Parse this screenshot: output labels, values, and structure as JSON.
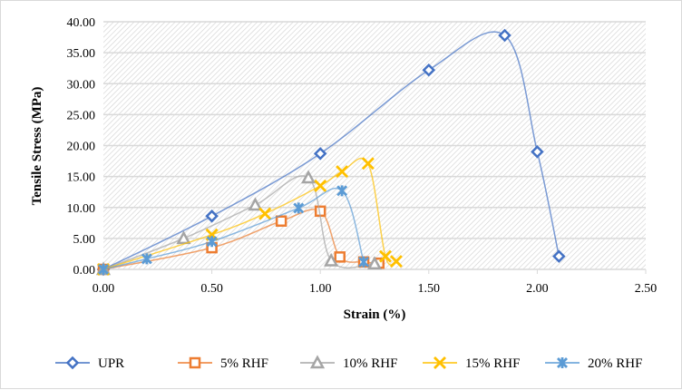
{
  "chart_data": {
    "type": "scatter",
    "title": "",
    "xlabel": "Strain (%)",
    "ylabel": "Tensile Stress (MPa)",
    "xlim": [
      0,
      2.5
    ],
    "ylim": [
      0,
      40
    ],
    "xticks": [
      "0.00",
      "0.50",
      "1.00",
      "1.50",
      "2.00",
      "2.50"
    ],
    "yticks": [
      "0.00",
      "5.00",
      "10.00",
      "15.00",
      "20.00",
      "25.00",
      "30.00",
      "35.00",
      "40.00"
    ],
    "grid": true,
    "legend_position": "bottom",
    "series": [
      {
        "name": "UPR",
        "color": "#4472c4",
        "marker": "diamond",
        "x": [
          0,
          0.5,
          1.0,
          1.5,
          1.85,
          2.0,
          2.1
        ],
        "y": [
          0,
          8.6,
          18.7,
          32.2,
          37.8,
          19.0,
          2.1
        ]
      },
      {
        "name": "5% RHF",
        "color": "#ed7d31",
        "marker": "square",
        "x": [
          0,
          0.5,
          0.82,
          1.0,
          1.09,
          1.2,
          1.27
        ],
        "y": [
          0,
          3.5,
          7.8,
          9.4,
          2.0,
          1.2,
          1.0
        ]
      },
      {
        "name": "10% RHF",
        "color": "#a5a5a5",
        "marker": "triangle",
        "x": [
          0,
          0.37,
          0.7,
          0.945,
          1.05,
          1.25
        ],
        "y": [
          0,
          5.0,
          10.4,
          14.8,
          1.4,
          0.9
        ]
      },
      {
        "name": "15% RHF",
        "color": "#ffc000",
        "marker": "x",
        "x": [
          0,
          0.5,
          0.745,
          1.0,
          1.1,
          1.22,
          1.3,
          1.35
        ],
        "y": [
          0,
          5.6,
          9.0,
          13.5,
          15.8,
          17.1,
          2.1,
          1.3
        ]
      },
      {
        "name": "20% RHF",
        "color": "#5b9bd5",
        "marker": "star",
        "x": [
          0,
          0.2,
          0.5,
          0.9,
          1.1,
          1.2
        ],
        "y": [
          0,
          1.7,
          4.5,
          9.9,
          12.7,
          1.2
        ]
      }
    ]
  }
}
